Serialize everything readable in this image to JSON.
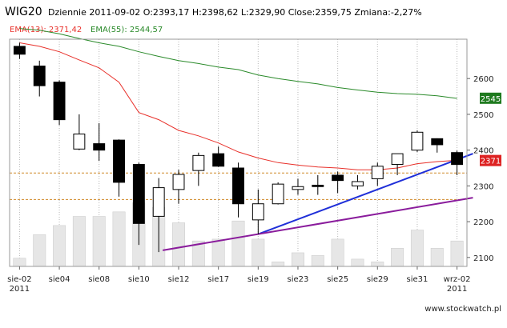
{
  "header": {
    "symbol": "WIG20",
    "info": "Dziennie 2011-09-02 O:2393,17 H:2398,62 L:2329,90 Close:2359,75 Zmiana:-2,27%",
    "ema13_label": "EMA(13): 2371,42",
    "ema55_label": "EMA(55): 2544,57"
  },
  "watermark": "www.stockwatch.pl",
  "colors": {
    "ema13": "#e8302a",
    "ema55": "#2a8a2a",
    "trend_upper": "#1f2fd8",
    "trend_lower": "#8a1c9c",
    "level_lines": "#d08a2a",
    "badge_ema55": "#1f7a1f",
    "badge_close": "#dd2222",
    "volume": "#e6e6e6"
  },
  "chart_data": {
    "type": "candlestick",
    "ylim": [
      2075,
      2710
    ],
    "yticks": [
      2100,
      2200,
      2300,
      2400,
      2500,
      2600
    ],
    "y_grid": false,
    "x_grid": true,
    "x_tick_labels": [
      {
        "index": 0,
        "label": "sie-02",
        "sub": "2011"
      },
      {
        "index": 2,
        "label": "sie04",
        "sub": ""
      },
      {
        "index": 4,
        "label": "sie08",
        "sub": ""
      },
      {
        "index": 6,
        "label": "sie10",
        "sub": ""
      },
      {
        "index": 8,
        "label": "sie12",
        "sub": ""
      },
      {
        "index": 10,
        "label": "sie17",
        "sub": ""
      },
      {
        "index": 12,
        "label": "sie19",
        "sub": ""
      },
      {
        "index": 14,
        "label": "sie23",
        "sub": ""
      },
      {
        "index": 16,
        "label": "sie25",
        "sub": ""
      },
      {
        "index": 18,
        "label": "sie29",
        "sub": ""
      },
      {
        "index": 20,
        "label": "sie31",
        "sub": ""
      },
      {
        "index": 22,
        "label": "wrz-02",
        "sub": "2011"
      }
    ],
    "candles": [
      {
        "o": 2690,
        "h": 2700,
        "l": 2655,
        "c": 2668
      },
      {
        "o": 2635,
        "h": 2650,
        "l": 2550,
        "c": 2580
      },
      {
        "o": 2590,
        "h": 2595,
        "l": 2470,
        "c": 2485
      },
      {
        "o": 2403,
        "h": 2500,
        "l": 2400,
        "c": 2445
      },
      {
        "o": 2418,
        "h": 2475,
        "l": 2370,
        "c": 2400
      },
      {
        "o": 2428,
        "h": 2430,
        "l": 2270,
        "c": 2310
      },
      {
        "o": 2360,
        "h": 2365,
        "l": 2135,
        "c": 2195
      },
      {
        "o": 2215,
        "h": 2322,
        "l": 2115,
        "c": 2295
      },
      {
        "o": 2290,
        "h": 2345,
        "l": 2250,
        "c": 2332
      },
      {
        "o": 2343,
        "h": 2393,
        "l": 2300,
        "c": 2385
      },
      {
        "o": 2390,
        "h": 2410,
        "l": 2353,
        "c": 2355
      },
      {
        "o": 2350,
        "h": 2365,
        "l": 2212,
        "c": 2250
      },
      {
        "o": 2205,
        "h": 2290,
        "l": 2165,
        "c": 2250
      },
      {
        "o": 2250,
        "h": 2310,
        "l": 2248,
        "c": 2305
      },
      {
        "o": 2290,
        "h": 2320,
        "l": 2275,
        "c": 2298
      },
      {
        "o": 2302,
        "h": 2330,
        "l": 2275,
        "c": 2298
      },
      {
        "o": 2330,
        "h": 2340,
        "l": 2280,
        "c": 2315
      },
      {
        "o": 2300,
        "h": 2330,
        "l": 2290,
        "c": 2312
      },
      {
        "o": 2320,
        "h": 2365,
        "l": 2300,
        "c": 2355
      },
      {
        "o": 2360,
        "h": 2390,
        "l": 2330,
        "c": 2390
      },
      {
        "o": 2400,
        "h": 2455,
        "l": 2395,
        "c": 2450
      },
      {
        "o": 2432,
        "h": 2433,
        "l": 2393,
        "c": 2415
      },
      {
        "o": 2393.17,
        "h": 2398.62,
        "l": 2329.9,
        "c": 2359.75
      }
    ],
    "volume": [
      0.09,
      0.35,
      0.45,
      0.55,
      0.55,
      0.6,
      0.7,
      0.65,
      0.48,
      0.28,
      0.3,
      0.5,
      0.3,
      0.05,
      0.15,
      0.12,
      0.3,
      0.08,
      0.05,
      0.2,
      0.4,
      0.2,
      0.28
    ],
    "ema13": [
      2700,
      2690,
      2675,
      2652,
      2630,
      2590,
      2505,
      2485,
      2455,
      2440,
      2420,
      2395,
      2378,
      2365,
      2358,
      2353,
      2350,
      2345,
      2345,
      2350,
      2362,
      2368,
      2371.42
    ],
    "ema55": [
      2740,
      2735,
      2725,
      2712,
      2700,
      2690,
      2675,
      2662,
      2650,
      2642,
      2632,
      2625,
      2610,
      2600,
      2592,
      2585,
      2575,
      2568,
      2562,
      2558,
      2556,
      2552,
      2544.57
    ],
    "ema13_label": "EMA(13): 2371,42",
    "ema55_label": "EMA(55): 2544,57",
    "levels": [
      2336,
      2262
    ],
    "trendlines": [
      {
        "name": "upper",
        "x1": 12,
        "y1": 2165,
        "x2": 22.8,
        "y2": 2390
      },
      {
        "name": "lower",
        "x1": 7.2,
        "y1": 2120,
        "x2": 22.8,
        "y2": 2267
      }
    ],
    "last_value_badges": [
      {
        "label": "2545",
        "value": 2545,
        "color": "#1f7a1f"
      },
      {
        "label": "2371",
        "value": 2371,
        "color": "#dd2222"
      }
    ]
  }
}
